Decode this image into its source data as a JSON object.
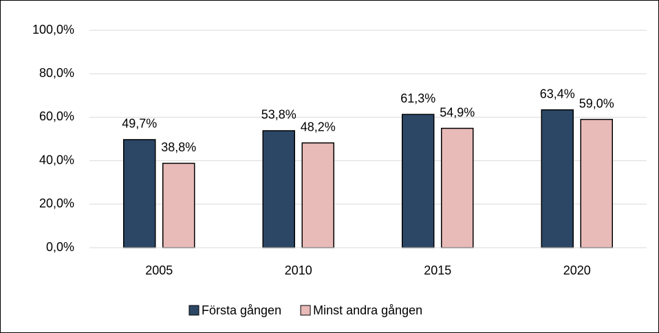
{
  "chart_data": {
    "type": "bar",
    "categories": [
      "2005",
      "2010",
      "2015",
      "2020"
    ],
    "series": [
      {
        "name": "Första gången",
        "color": "#2c4766",
        "values": [
          49.7,
          53.8,
          61.3,
          63.4
        ],
        "value_labels": [
          "49,7%",
          "53,8%",
          "61,3%",
          "63,4%"
        ]
      },
      {
        "name": "Minst andra gången",
        "color": "#e8bab8",
        "values": [
          38.8,
          48.2,
          54.9,
          59.0
        ],
        "value_labels": [
          "38,8%",
          "48,2%",
          "54,9%",
          "59,0%"
        ]
      }
    ],
    "ylim": [
      0,
      100
    ],
    "yticks": [
      {
        "value": 0,
        "label": "0,0%"
      },
      {
        "value": 20,
        "label": "20,0%"
      },
      {
        "value": 40,
        "label": "40,0%"
      },
      {
        "value": 60,
        "label": "60,0%"
      },
      {
        "value": 80,
        "label": "80,0%"
      },
      {
        "value": 100,
        "label": "100,0%"
      }
    ],
    "grid": true,
    "legend": "bottom"
  }
}
